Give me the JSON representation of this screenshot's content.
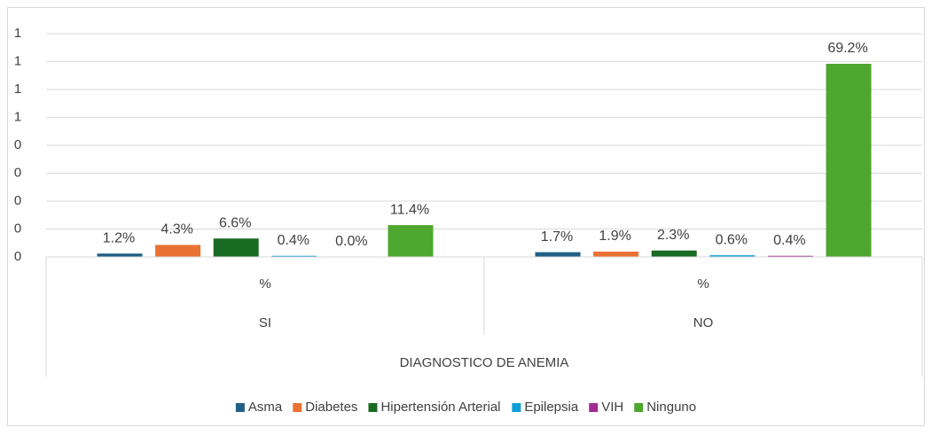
{
  "chart_data": {
    "type": "bar",
    "categories": [
      "SI",
      "NO"
    ],
    "subcategories": [
      "%",
      "%"
    ],
    "x_label": "DIAGNOSTICO DE ANEMIA",
    "series": [
      {
        "name": "Asma",
        "color": "#215f86",
        "values": [
          0.012,
          0.017
        ],
        "value_labels": [
          "1.2%",
          "1.7%"
        ]
      },
      {
        "name": "Diabetes",
        "color": "#e97132",
        "values": [
          0.043,
          0.019
        ],
        "value_labels": [
          "4.3%",
          "1.9%"
        ]
      },
      {
        "name": "Hipertensión Arterial",
        "color": "#196b24",
        "values": [
          0.066,
          0.023
        ],
        "value_labels": [
          "6.6%",
          "2.3%"
        ]
      },
      {
        "name": "Epilepsia",
        "color": "#0f9ed5",
        "values": [
          0.004,
          0.006
        ],
        "value_labels": [
          "0.4%",
          "0.6%"
        ]
      },
      {
        "name": "VIH",
        "color": "#a02b93",
        "values": [
          0.0,
          0.004
        ],
        "value_labels": [
          "0.0%",
          "0.4%"
        ]
      },
      {
        "name": "Ninguno",
        "color": "#4ea72e",
        "values": [
          0.114,
          0.692
        ],
        "value_labels": [
          "11.4%",
          "69.2%"
        ]
      }
    ],
    "ylim": [
      0,
      0.8
    ],
    "yticks": [
      {
        "value": 0,
        "label": "0"
      },
      {
        "value": 0.1,
        "label": "0"
      },
      {
        "value": 0.2,
        "label": "0"
      },
      {
        "value": 0.3,
        "label": "0"
      },
      {
        "value": 0.4,
        "label": "0"
      },
      {
        "value": 0.5,
        "label": "1"
      },
      {
        "value": 0.6,
        "label": "1"
      },
      {
        "value": 0.7,
        "label": "1"
      },
      {
        "value": 0.8,
        "label": "1"
      }
    ],
    "grid": true,
    "legend": "bottom"
  }
}
